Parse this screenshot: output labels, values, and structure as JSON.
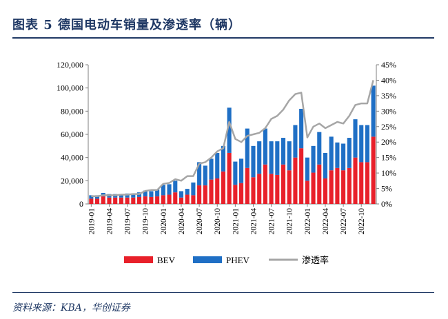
{
  "title": "图表 5   德国电动车销量及渗透率（辆）",
  "source": "资料来源：KBA，华创证券",
  "chart_data": {
    "type": "bar",
    "stacked": true,
    "categories": [
      "2019-01",
      "2019-02",
      "2019-03",
      "2019-04",
      "2019-05",
      "2019-06",
      "2019-07",
      "2019-08",
      "2019-09",
      "2019-10",
      "2019-11",
      "2019-12",
      "2020-01",
      "2020-02",
      "2020-03",
      "2020-04",
      "2020-05",
      "2020-06",
      "2020-07",
      "2020-08",
      "2020-09",
      "2020-10",
      "2020-11",
      "2020-12",
      "2021-01",
      "2021-02",
      "2021-03",
      "2021-04",
      "2021-05",
      "2021-06",
      "2021-07",
      "2021-08",
      "2021-09",
      "2021-10",
      "2021-11",
      "2021-12",
      "2022-01",
      "2022-02",
      "2022-03",
      "2022-04",
      "2022-05",
      "2022-06",
      "2022-07",
      "2022-08",
      "2022-09",
      "2022-10",
      "2022-11",
      "2022-12"
    ],
    "tick_labels": [
      "2019-01",
      "2019-04",
      "2019-07",
      "2019-10",
      "2020-01",
      "2020-04",
      "2020-07",
      "2020-10",
      "2021-01",
      "2021-04",
      "2021-07",
      "2021-10",
      "2022-01",
      "2022-04",
      "2022-07",
      "2022-10"
    ],
    "series": [
      {
        "name": "BEV",
        "color": "#e8202a",
        "axis": "left",
        "values": [
          4500,
          4500,
          6500,
          5500,
          5500,
          5500,
          5500,
          5500,
          6000,
          6500,
          6000,
          6500,
          7500,
          8000,
          10000,
          5500,
          8000,
          7500,
          16000,
          16000,
          21000,
          22000,
          28000,
          44000,
          16500,
          18000,
          31000,
          23000,
          26000,
          34000,
          26000,
          25000,
          34000,
          29000,
          40000,
          48000,
          20000,
          27000,
          34000,
          22000,
          29000,
          31000,
          29000,
          31000,
          40000,
          36000,
          36000,
          58000
        ]
      },
      {
        "name": "PHEV",
        "color": "#1f6fc5",
        "axis": "left",
        "values": [
          3000,
          3000,
          3000,
          3000,
          3000,
          3000,
          3500,
          3500,
          4000,
          5000,
          5000,
          6000,
          9000,
          9000,
          10000,
          5500,
          5000,
          11000,
          20000,
          17000,
          18000,
          22000,
          22000,
          39000,
          20000,
          21000,
          34000,
          27000,
          28000,
          31000,
          28000,
          29000,
          23000,
          25000,
          28000,
          34000,
          20000,
          23000,
          28000,
          22000,
          29000,
          22000,
          23000,
          26000,
          33000,
          32000,
          32000,
          44000
        ]
      },
      {
        "name": "渗透率",
        "color": "#a6a6a6",
        "axis": "right",
        "type": "line",
        "values": [
          2.5,
          2.5,
          2.8,
          2.8,
          2.8,
          3.0,
          3.0,
          3.2,
          3.2,
          4.2,
          4.5,
          4.5,
          6.5,
          6.8,
          8.0,
          7.5,
          9.0,
          9.0,
          13.0,
          13.5,
          15.0,
          17.0,
          18.0,
          26.5,
          21.0,
          20.0,
          22.0,
          22.5,
          23.0,
          24.5,
          27.5,
          28.5,
          30.5,
          33.5,
          35.5,
          36.0,
          21.5,
          25.0,
          26.0,
          24.5,
          25.5,
          26.5,
          26.0,
          28.5,
          32.0,
          32.5,
          32.5,
          40.0
        ]
      }
    ],
    "y_left": {
      "min": 0,
      "max": 120000,
      "ticks": [
        "0",
        "20,000",
        "40,000",
        "60,000",
        "80,000",
        "100,000",
        "120,000"
      ]
    },
    "y_right": {
      "min": 0,
      "max": 45,
      "ticks": [
        "0%",
        "5%",
        "10%",
        "15%",
        "20%",
        "25%",
        "30%",
        "35%",
        "40%",
        "45%"
      ]
    },
    "legend_position": "bottom"
  }
}
